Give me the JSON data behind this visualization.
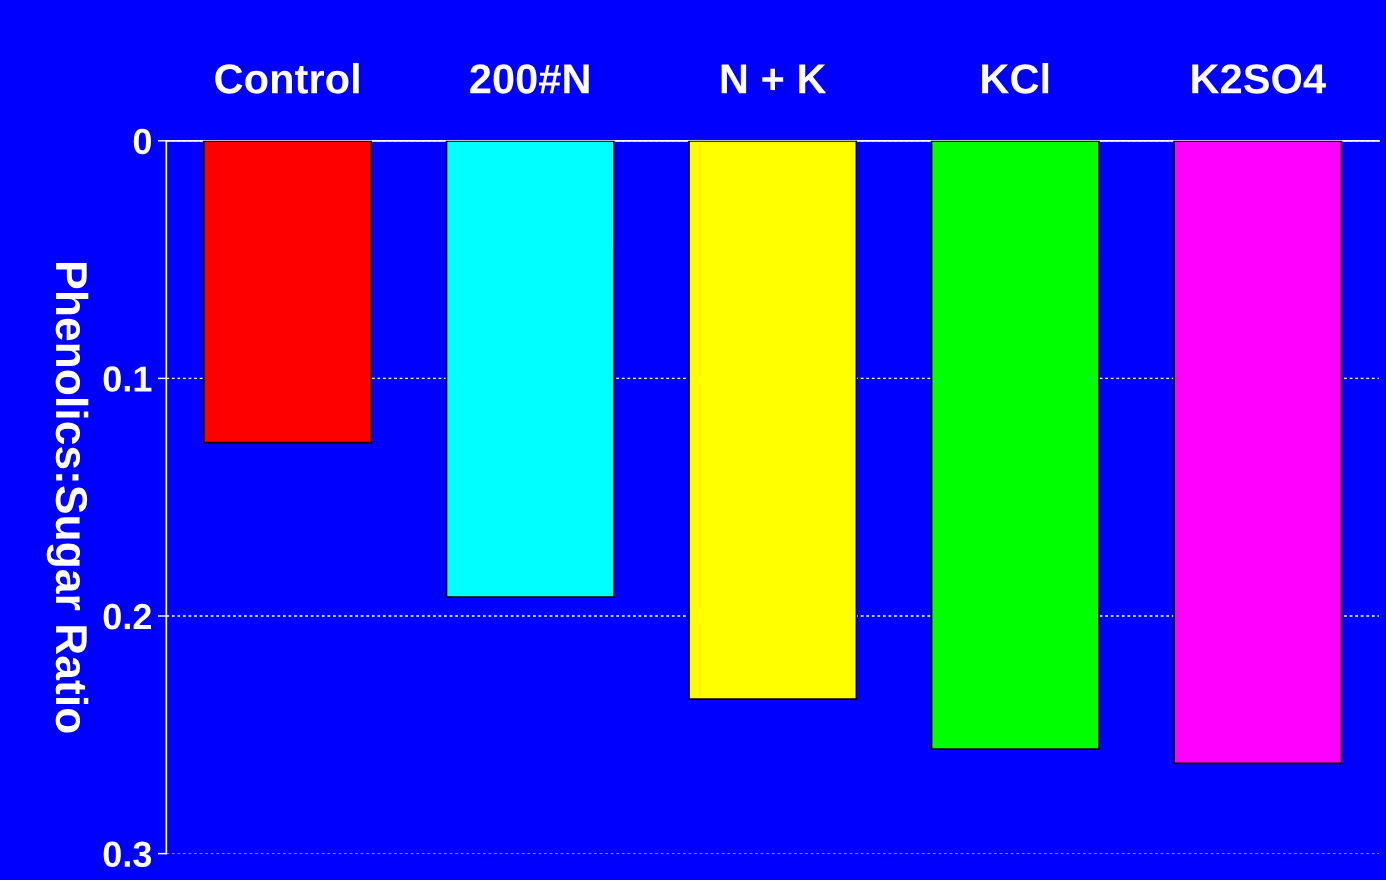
{
  "chart_data": {
    "type": "bar",
    "ylabel": "Phenolics:Sugar Ratio",
    "categories": [
      "Control",
      "200#N",
      "N + K",
      "KCl",
      "K2SO4"
    ],
    "values": [
      0.127,
      0.192,
      0.235,
      0.256,
      0.262
    ],
    "colors": [
      "#ff0000",
      "#00ffff",
      "#ffff00",
      "#00ff00",
      "#ff00ff"
    ],
    "ylim": [
      0.3,
      0
    ],
    "yticks": [
      0,
      0.1,
      0.2,
      0.3
    ],
    "grid": "y"
  }
}
